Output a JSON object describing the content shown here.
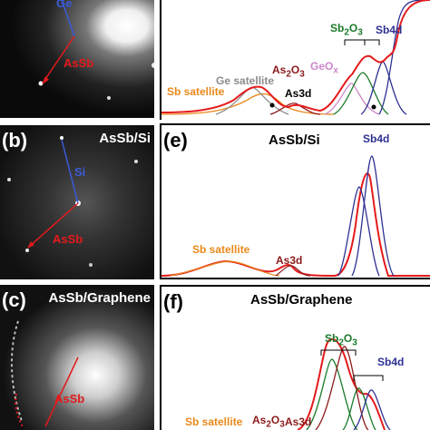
{
  "panels": {
    "a": {
      "rheed_labels": {
        "substrate": "Ge",
        "film": "AsSb"
      },
      "spectrum_labels": {
        "sb_satellite": "Sb satellite",
        "ge_satellite": "Ge satellite",
        "as2o3": "As2O3",
        "as3d": "As3d",
        "sb2o3": "Sb2O3",
        "sb4d": "Sb4d",
        "geox": "GeOx"
      }
    },
    "b": {
      "label": "(b)",
      "sample": "AsSb/Si",
      "rheed_labels": {
        "substrate": "Si",
        "film": "AsSb"
      }
    },
    "e": {
      "label": "(e)",
      "title": "AsSb/Si",
      "spectrum_labels": {
        "sb_satellite": "Sb satellite",
        "as3d": "As3d",
        "sb4d": "Sb4d"
      }
    },
    "c": {
      "label": "(c)",
      "sample": "AsSb/Graphene",
      "rheed_labels": {
        "film": "AsSb"
      }
    },
    "f": {
      "label": "(f)",
      "title": "AsSb/Graphene",
      "spectrum_labels": {
        "sb2o3": "Sb2O3",
        "sb4d": "Sb4d",
        "sb_satellite": "Sb satellite",
        "as2o3": "As2O3",
        "as3d": "As3d"
      }
    }
  },
  "colors": {
    "data_red": "#e41a1c",
    "sb_satellite": "#e8891a",
    "ge_satellite": "#8c8c8c",
    "as": "#8b1a1a",
    "sb2o3": "#1a7a2a",
    "sb4d": "#2e3192",
    "geox": "#cc88cc",
    "arrow_blue": "#3a5bd9",
    "arrow_red": "#e41a1c"
  }
}
